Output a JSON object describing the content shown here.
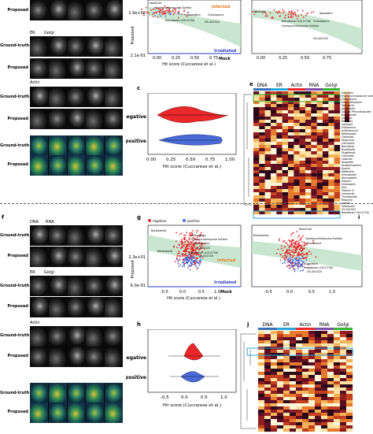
{
  "top": {
    "row_labels": [
      "Proposed",
      "Ground-truth",
      "Proposed",
      "Ground-truth",
      "Proposed",
      "Ground-truth",
      "Proposed"
    ],
    "channels_er_golgi": [
      "ER",
      "Golgi"
    ],
    "channel_actin": "Actin",
    "panel_c": "c",
    "panel_e": "e",
    "scatter_top": {
      "ytick_top": "1.9e+02",
      "ytick_bottom": "2.1e-01",
      "ylabel": "Proposed",
      "xlabel": "Hit score (Cuccarese et al.)",
      "xticks": [
        "0.00",
        "0.25",
        "0.50",
        "0.75"
      ],
      "infected": "Infected",
      "irradiated": "Irradiated",
      "mock": "Mock",
      "annotations": [
        "Idelalisib",
        "Hydroxychloroquine Sulfate",
        "Chloroquine",
        "Idoxstatin",
        "Remdesivir (GS-5734)",
        "GS-441524"
      ]
    },
    "scatter_top_right": {
      "xticks": [
        "0.00",
        "0.25",
        "0.50",
        "0.75"
      ],
      "annotations": [
        "Idelalisib",
        "Idoxstatin",
        "Remdesivir (GS-5734)",
        "Chloroquine",
        "Hydroxychloroquine Sulfate",
        "GS-441524"
      ]
    },
    "violin": {
      "labels": [
        "negative",
        "positive"
      ],
      "xticks": [
        "0.00",
        "0.25",
        "0.50",
        "0.75",
        "1.00"
      ],
      "xlabel": "Hit score (Cuccarese et al.)"
    },
    "heatmap": {
      "cols": [
        "DNA",
        "ER",
        "Actin",
        "RNA",
        "Golgi"
      ],
      "highlight_green": [
        "Hydroxychloroquine Sulfate",
        "Chloroquine"
      ],
      "highlight_blue": [
        "GS-441524",
        "Remdesivir (GS-5734)"
      ],
      "row_names": [
        "Genistein",
        "Hydroxychloroquine Sulfate",
        "Chloroquine",
        "Dexamethasone",
        "Tofacitinib",
        "Apremilast",
        "Sodium Phenylbutyrate",
        "Budesonide",
        "Indinavir",
        "Ritonavir",
        "Lopinavir",
        "Oseltamivir",
        "Azithromycin",
        "Nafamostat",
        "Camostat",
        "Favipiravir",
        "Colchicine",
        "Baricitinib",
        "Ruxolitinib",
        "Fingolimod",
        "Celecoxib",
        "Losartan",
        "Ibuprofen",
        "Acetaminophen",
        "Aspirin",
        "Metformin",
        "Simvastatin",
        "Atorvastatin",
        "Heparin",
        "Enoxaparin",
        "Zinc",
        "Vitamin D",
        "Ivermectin",
        "Thalidomide",
        "Ribavirin",
        "Arbidol",
        "Sofosbuvir",
        "GS-441524",
        "Remdesivir (GS-5734)"
      ]
    }
  },
  "bottom": {
    "panel_f": "f",
    "panel_g": "g",
    "panel_h": "h",
    "panel_i": "i",
    "panel_j": "j",
    "channels_dna_rna": [
      "DNA",
      "RNA"
    ],
    "channels_er_golgi": [
      "ER",
      "Golgi"
    ],
    "channel_actin": "Actin",
    "row_labels": [
      "Ground-truth",
      "Proposed",
      "Ground-truth",
      "Proposed",
      "Ground-truth",
      "Proposed",
      "Ground-truth",
      "Proposed"
    ],
    "scatter_g": {
      "legend": [
        "negative",
        "positive"
      ],
      "ytick_top": "2.3e+01",
      "ytick_bottom": "6.0e-01",
      "ylabel": "Proposed",
      "xlabel": "Hit score (Cuccarese et al.)",
      "xticks": [
        "-0.5",
        "0.0",
        "0.5",
        "1.0"
      ],
      "infected": "Infected",
      "irradiated": "Irradiated",
      "mock": "Mock",
      "annotations": [
        "Bortezomib",
        "Aloxistatin",
        "Hydroxychloroquine Sulfate",
        "Chloroquine",
        "GS-441524",
        "Bortezomib",
        "Remdesivir (GS-5734)",
        "GS-441524"
      ]
    },
    "scatter_i": {
      "xticks": [
        "-0.5",
        "0.0",
        "0.5",
        "1.0"
      ],
      "annotations": [
        "Bosutinib",
        "Bortezomib",
        "Hydroxychloroquine Sulfate",
        "Chloroquine",
        "Aloxistatin",
        "Remdesivir (GS-5734)",
        "GS-441524"
      ]
    },
    "violin": {
      "labels": [
        "negative",
        "positive"
      ],
      "xticks": [
        "-0.5",
        "0.0",
        "0.5",
        "1.0"
      ],
      "xlabel": "Hit score (Cuccarese et al.)"
    },
    "heatmap": {
      "cols": [
        "DNA",
        "ER",
        "Actin",
        "RNA",
        "Golgi"
      ],
      "highlight_blue": [
        "GS-441524",
        "Remdesivir (GS-5734)"
      ]
    }
  },
  "colors": {
    "negative": "#e8282b",
    "positive": "#4a6bd6",
    "green_band": "#bfe3c8",
    "infected": "#e87b1e",
    "irradiated": "#2a3fc7",
    "green_box": "#34b534",
    "blue_box": "#2aa7d6"
  }
}
